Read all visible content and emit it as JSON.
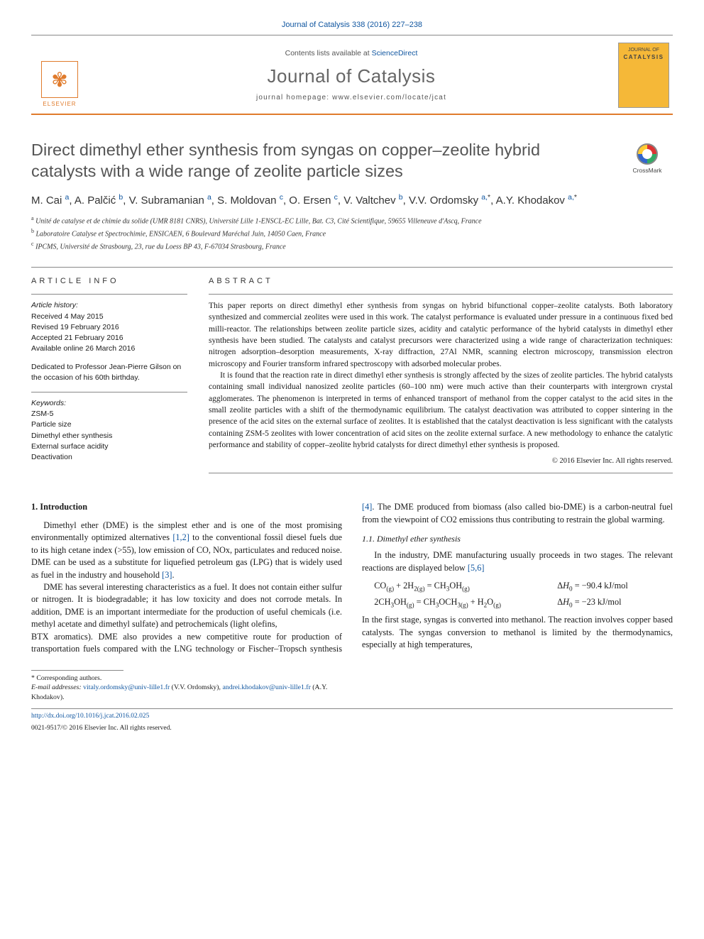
{
  "topline": "Journal of Catalysis 338 (2016) 227–238",
  "masthead": {
    "contents_prefix": "Contents lists available at ",
    "contents_link": "ScienceDirect",
    "journal": "Journal of Catalysis",
    "homepage_label": "journal homepage: ",
    "homepage_url": "www.elsevier.com/locate/jcat",
    "publisher": "ELSEVIER",
    "cover_top": "JOURNAL OF",
    "cover_bottom": "CATALYSIS"
  },
  "title": "Direct dimethyl ether synthesis from syngas on copper–zeolite hybrid catalysts with a wide range of zeolite particle sizes",
  "crossmark": "CrossMark",
  "authors": [
    {
      "name": "M. Cai",
      "aff": "a"
    },
    {
      "name": "A. Palčić",
      "aff": "b"
    },
    {
      "name": "V. Subramanian",
      "aff": "a"
    },
    {
      "name": "S. Moldovan",
      "aff": "c"
    },
    {
      "name": "O. Ersen",
      "aff": "c"
    },
    {
      "name": "V. Valtchev",
      "aff": "b"
    },
    {
      "name": "V.V. Ordomsky",
      "aff": "a,",
      "star": true
    },
    {
      "name": "A.Y. Khodakov",
      "aff": "a,",
      "star": true
    }
  ],
  "affiliations": [
    {
      "key": "a",
      "text": "Unité de catalyse et de chimie du solide (UMR 8181 CNRS), Université Lille 1-ENSCL-EC Lille, Bat. C3, Cité Scientifique, 59655 Villeneuve d'Ascq, France"
    },
    {
      "key": "b",
      "text": "Laboratoire Catalyse et Spectrochimie, ENSICAEN, 6 Boulevard Maréchal Juin, 14050 Caen, France"
    },
    {
      "key": "c",
      "text": "IPCMS, Université de Strasbourg, 23, rue du Loess BP 43, F-67034 Strasbourg, France"
    }
  ],
  "info_header": "ARTICLE INFO",
  "abs_header": "ABSTRACT",
  "history": {
    "header": "Article history:",
    "received": "Received 4 May 2015",
    "revised": "Revised 19 February 2016",
    "accepted": "Accepted 21 February 2016",
    "online": "Available online 26 March 2016"
  },
  "dedication": "Dedicated to Professor Jean-Pierre Gilson on the occasion of his 60th birthday.",
  "keywords_header": "Keywords:",
  "keywords": [
    "ZSM-5",
    "Particle size",
    "Dimethyl ether synthesis",
    "External surface acidity",
    "Deactivation"
  ],
  "abstract": [
    "This paper reports on direct dimethyl ether synthesis from syngas on hybrid bifunctional copper–zeolite catalysts. Both laboratory synthesized and commercial zeolites were used in this work. The catalyst performance is evaluated under pressure in a continuous fixed bed milli-reactor. The relationships between zeolite particle sizes, acidity and catalytic performance of the hybrid catalysts in dimethyl ether synthesis have been studied. The catalysts and catalyst precursors were characterized using a wide range of characterization techniques: nitrogen adsorption–desorption measurements, X-ray diffraction, 27Al NMR, scanning electron microscopy, transmission electron microscopy and Fourier transform infrared spectroscopy with adsorbed molecular probes.",
    "It is found that the reaction rate in direct dimethyl ether synthesis is strongly affected by the sizes of zeolite particles. The hybrid catalysts containing small individual nanosized zeolite particles (60–100 nm) were much active than their counterparts with intergrown crystal agglomerates. The phenomenon is interpreted in terms of enhanced transport of methanol from the copper catalyst to the acid sites in the small zeolite particles with a shift of the thermodynamic equilibrium. The catalyst deactivation was attributed to copper sintering in the presence of the acid sites on the external surface of zeolites. It is established that the catalyst deactivation is less significant with the catalysts containing ZSM-5 zeolites with lower concentration of acid sites on the zeolite external surface. A new methodology to enhance the catalytic performance and stability of copper–zeolite hybrid catalysts for direct dimethyl ether synthesis is proposed."
  ],
  "copyright": "© 2016 Elsevier Inc. All rights reserved.",
  "sections": {
    "intro_h": "1. Introduction",
    "intro_p1a": "Dimethyl ether (DME) is the simplest ether and is one of the most promising environmentally optimized alternatives ",
    "intro_ref1": "[1,2]",
    "intro_p1b": " to the conventional fossil diesel fuels due to its high cetane index (>55), low emission of CO, NOx, particulates and reduced noise. DME can be used as a substitute for liquefied petroleum gas (LPG) that is widely used as fuel in the industry and household ",
    "intro_ref2": "[3]",
    "intro_p1c": ".",
    "intro_p2": "DME has several interesting characteristics as a fuel. It does not contain either sulfur or nitrogen. It is biodegradable; it has low toxicity and does not corrode metals. In addition, DME is an important intermediate for the production of useful chemicals (i.e. methyl acetate and dimethyl sulfate) and petrochemicals (light olefins,",
    "col2_p1a": "BTX aromatics). DME also provides a new competitive route for production of transportation fuels compared with the LNG technology or Fischer–Tropsch synthesis ",
    "col2_ref1": "[4]",
    "col2_p1b": ". The DME produced from biomass (also called bio-DME) is a carbon-neutral fuel from the viewpoint of CO2 emissions thus contributing to restrain the global warming.",
    "sub_h": "1.1. Dimethyl ether synthesis",
    "sub_p1a": "In the industry, DME manufacturing usually proceeds in two stages. The relevant reactions are displayed below ",
    "sub_ref1": "[5,6]",
    "eq1_l": "CO(g) + 2H2(g) = CH3OH(g)",
    "eq1_r": "ΔH0 = −90.4 kJ/mol",
    "eq2_l": "2CH3OH(g) = CH3OCH3(g) + H2O(g)",
    "eq2_r": "ΔH0 = −23 kJ/mol",
    "sub_p2": "In the first stage, syngas is converted into methanol. The reaction involves copper based catalysts. The syngas conversion to methanol is limited by the thermodynamics, especially at high temperatures,"
  },
  "footnotes": {
    "corr_label": "* Corresponding authors.",
    "email_label": "E-mail addresses:",
    "email1": "vitaly.ordomsky@univ-lille1.fr",
    "email1_who": " (V.V. Ordomsky), ",
    "email2": "andrei.khodakov@univ-lille1.fr",
    "email2_who": " (A.Y. Khodakov)."
  },
  "doi_label": "http://dx.doi.org/10.1016/j.jcat.2016.02.025",
  "issn_line": "0021-9517/© 2016 Elsevier Inc. All rights reserved.",
  "colors": {
    "link": "#1056a0",
    "accent": "#e07b2c",
    "cover": "#f5b838",
    "text": "#1a1a1a",
    "grey_heading": "#555555"
  }
}
